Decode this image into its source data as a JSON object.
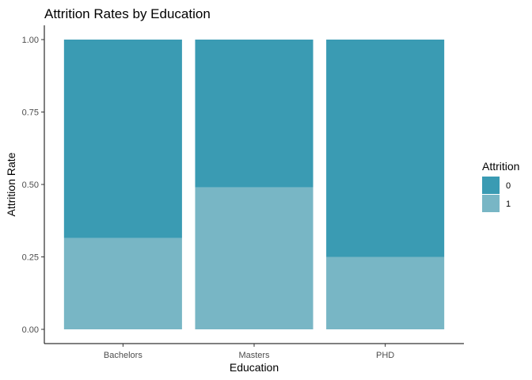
{
  "chart_data": {
    "type": "bar",
    "stacked": true,
    "title": "Attrition Rates by Education",
    "xlabel": "Education",
    "ylabel": "Attrition Rate",
    "categories": [
      "Bachelors",
      "Masters",
      "PHD"
    ],
    "series": [
      {
        "name": "0",
        "values": [
          0.685,
          0.51,
          0.75
        ],
        "color": "#3a9bb3"
      },
      {
        "name": "1",
        "values": [
          0.315,
          0.49,
          0.25
        ],
        "color": "#78b6c5"
      }
    ],
    "ylim": [
      0,
      1
    ],
    "yticks": [
      0,
      0.25,
      0.5,
      0.75,
      1
    ],
    "ytick_labels": [
      "0.00",
      "0.25",
      "0.50",
      "0.75",
      "1.00"
    ],
    "legend": {
      "title": "Attrition",
      "position": "right"
    },
    "grid": false
  }
}
